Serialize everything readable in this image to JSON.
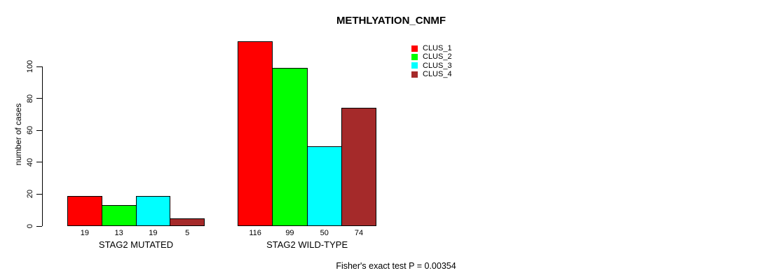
{
  "chart_data": {
    "type": "bar",
    "title": "METHLYATION_CNMF",
    "ylabel": "number of cases",
    "xlabel": "",
    "footnote": "Fisher's exact test P = 0.00354",
    "yticks": [
      0,
      20,
      40,
      60,
      80,
      100
    ],
    "ylim": [
      0,
      116
    ],
    "grid": false,
    "legend_position": "top-right-of-plot",
    "bar_border_color": "#000000",
    "categories": [
      "STAG2 MUTATED",
      "STAG2 WILD-TYPE"
    ],
    "series": [
      {
        "name": "CLUS_1",
        "color": "#ff0000",
        "values": [
          19,
          116
        ]
      },
      {
        "name": "CLUS_2",
        "color": "#00ff00",
        "values": [
          13,
          99
        ]
      },
      {
        "name": "CLUS_3",
        "color": "#00ffff",
        "values": [
          19,
          50
        ]
      },
      {
        "name": "CLUS_4",
        "color": "#a52a2a",
        "values": [
          5,
          74
        ]
      }
    ],
    "bar_value_labels": [
      [
        19,
        13,
        19,
        5
      ],
      [
        116,
        99,
        50,
        74
      ]
    ]
  }
}
